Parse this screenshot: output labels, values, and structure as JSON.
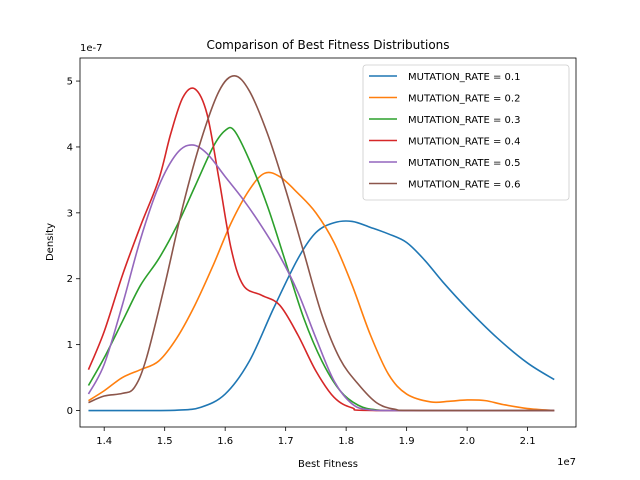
{
  "chart_data": {
    "type": "line",
    "title": "Comparison of Best Fitness Distributions",
    "xlabel": "Best Fitness",
    "ylabel": "Density",
    "x_offset_label": "1e7",
    "y_offset_label": "1e-7",
    "xlim": [
      1.36,
      2.18
    ],
    "ylim": [
      -0.25,
      5.35
    ],
    "x_ticks": [
      1.4,
      1.5,
      1.6,
      1.7,
      1.8,
      1.9,
      2.0,
      2.1
    ],
    "x_tick_labels": [
      "1.4",
      "1.5",
      "1.6",
      "1.7",
      "1.8",
      "1.9",
      "2.0",
      "2.1"
    ],
    "y_ticks": [
      0,
      1,
      2,
      3,
      4,
      5
    ],
    "y_tick_labels": [
      "0",
      "1",
      "2",
      "3",
      "4",
      "5"
    ],
    "grid": false,
    "legend_position": "top-right",
    "series": [
      {
        "name": "MUTATION_RATE = 0.1",
        "color": "#1f77b4",
        "points": [
          [
            1.374,
            0.0
          ],
          [
            1.45,
            0.0
          ],
          [
            1.52,
            0.005
          ],
          [
            1.56,
            0.05
          ],
          [
            1.6,
            0.25
          ],
          [
            1.64,
            0.75
          ],
          [
            1.68,
            1.55
          ],
          [
            1.72,
            2.3
          ],
          [
            1.75,
            2.7
          ],
          [
            1.78,
            2.85
          ],
          [
            1.81,
            2.87
          ],
          [
            1.84,
            2.78
          ],
          [
            1.87,
            2.68
          ],
          [
            1.9,
            2.55
          ],
          [
            1.93,
            2.28
          ],
          [
            1.96,
            1.95
          ],
          [
            2.0,
            1.55
          ],
          [
            2.05,
            1.1
          ],
          [
            2.1,
            0.72
          ],
          [
            2.144,
            0.47
          ]
        ]
      },
      {
        "name": "MUTATION_RATE = 0.2",
        "color": "#ff7f0e",
        "points": [
          [
            1.374,
            0.15
          ],
          [
            1.4,
            0.3
          ],
          [
            1.43,
            0.5
          ],
          [
            1.46,
            0.62
          ],
          [
            1.49,
            0.75
          ],
          [
            1.52,
            1.1
          ],
          [
            1.55,
            1.6
          ],
          [
            1.58,
            2.2
          ],
          [
            1.61,
            2.85
          ],
          [
            1.64,
            3.35
          ],
          [
            1.665,
            3.6
          ],
          [
            1.69,
            3.55
          ],
          [
            1.72,
            3.3
          ],
          [
            1.75,
            3.0
          ],
          [
            1.78,
            2.55
          ],
          [
            1.81,
            1.9
          ],
          [
            1.84,
            1.15
          ],
          [
            1.87,
            0.55
          ],
          [
            1.9,
            0.25
          ],
          [
            1.94,
            0.13
          ],
          [
            1.97,
            0.14
          ],
          [
            2.0,
            0.16
          ],
          [
            2.03,
            0.15
          ],
          [
            2.06,
            0.09
          ],
          [
            2.1,
            0.03
          ],
          [
            2.144,
            0.0
          ]
        ]
      },
      {
        "name": "MUTATION_RATE = 0.3",
        "color": "#2ca02c",
        "points": [
          [
            1.374,
            0.38
          ],
          [
            1.4,
            0.8
          ],
          [
            1.43,
            1.35
          ],
          [
            1.46,
            1.9
          ],
          [
            1.49,
            2.3
          ],
          [
            1.52,
            2.8
          ],
          [
            1.55,
            3.4
          ],
          [
            1.58,
            4.0
          ],
          [
            1.6,
            4.25
          ],
          [
            1.615,
            4.25
          ],
          [
            1.64,
            3.8
          ],
          [
            1.67,
            3.1
          ],
          [
            1.7,
            2.25
          ],
          [
            1.73,
            1.4
          ],
          [
            1.76,
            0.75
          ],
          [
            1.79,
            0.3
          ],
          [
            1.82,
            0.08
          ],
          [
            1.85,
            0.01
          ],
          [
            1.9,
            0.0
          ],
          [
            2.144,
            0.0
          ]
        ]
      },
      {
        "name": "MUTATION_RATE = 0.4",
        "color": "#d62728",
        "points": [
          [
            1.374,
            0.62
          ],
          [
            1.4,
            1.2
          ],
          [
            1.43,
            2.05
          ],
          [
            1.46,
            2.8
          ],
          [
            1.49,
            3.5
          ],
          [
            1.51,
            4.2
          ],
          [
            1.53,
            4.75
          ],
          [
            1.55,
            4.88
          ],
          [
            1.57,
            4.5
          ],
          [
            1.59,
            3.5
          ],
          [
            1.61,
            2.45
          ],
          [
            1.63,
            1.9
          ],
          [
            1.66,
            1.75
          ],
          [
            1.69,
            1.6
          ],
          [
            1.72,
            1.15
          ],
          [
            1.75,
            0.6
          ],
          [
            1.78,
            0.2
          ],
          [
            1.81,
            0.04
          ],
          [
            1.85,
            0.0
          ],
          [
            2.144,
            0.0
          ]
        ]
      },
      {
        "name": "MUTATION_RATE = 0.5",
        "color": "#9467bd",
        "points": [
          [
            1.374,
            0.25
          ],
          [
            1.4,
            0.7
          ],
          [
            1.43,
            1.6
          ],
          [
            1.46,
            2.6
          ],
          [
            1.49,
            3.4
          ],
          [
            1.52,
            3.9
          ],
          [
            1.545,
            4.03
          ],
          [
            1.57,
            3.9
          ],
          [
            1.6,
            3.55
          ],
          [
            1.63,
            3.2
          ],
          [
            1.66,
            2.8
          ],
          [
            1.69,
            2.35
          ],
          [
            1.72,
            1.8
          ],
          [
            1.75,
            1.1
          ],
          [
            1.78,
            0.45
          ],
          [
            1.81,
            0.1
          ],
          [
            1.84,
            0.01
          ],
          [
            1.9,
            0.0
          ],
          [
            2.144,
            0.0
          ]
        ]
      },
      {
        "name": "MUTATION_RATE = 0.6",
        "color": "#8c564b",
        "points": [
          [
            1.374,
            0.12
          ],
          [
            1.4,
            0.22
          ],
          [
            1.43,
            0.26
          ],
          [
            1.45,
            0.35
          ],
          [
            1.47,
            0.8
          ],
          [
            1.5,
            1.9
          ],
          [
            1.53,
            3.1
          ],
          [
            1.56,
            4.1
          ],
          [
            1.59,
            4.85
          ],
          [
            1.615,
            5.08
          ],
          [
            1.64,
            4.85
          ],
          [
            1.67,
            4.2
          ],
          [
            1.7,
            3.35
          ],
          [
            1.73,
            2.4
          ],
          [
            1.76,
            1.45
          ],
          [
            1.79,
            0.78
          ],
          [
            1.82,
            0.4
          ],
          [
            1.85,
            0.12
          ],
          [
            1.88,
            0.02
          ],
          [
            1.92,
            0.0
          ],
          [
            2.144,
            0.0
          ]
        ]
      }
    ]
  }
}
